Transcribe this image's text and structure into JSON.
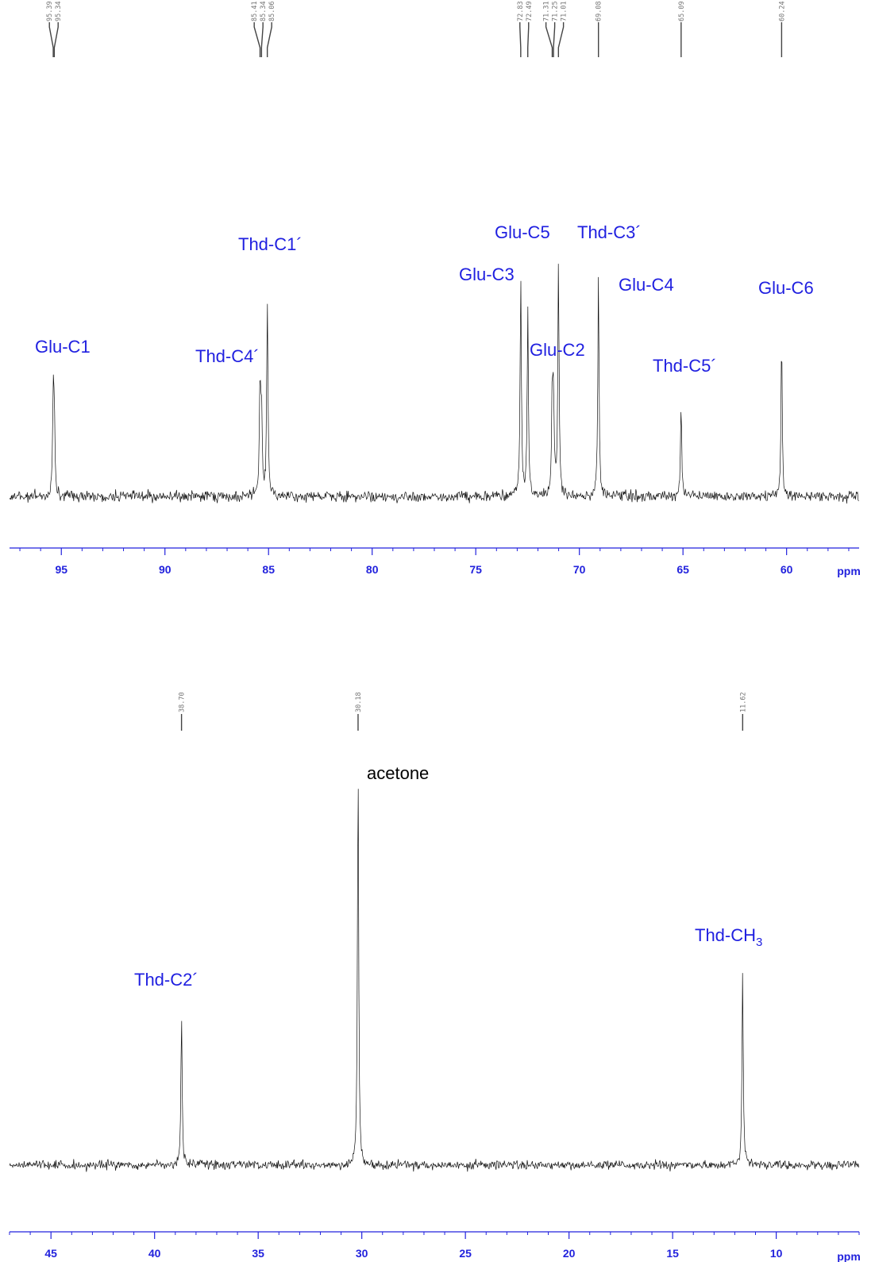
{
  "colors": {
    "axis": "#2222dd",
    "annotation": "#1f1fe0",
    "trace": "#111111",
    "peak_label": "#777777"
  },
  "chart_data": [
    {
      "type": "line",
      "title": "",
      "xlabel": "ppm",
      "ylabel": "",
      "xlim": [
        97.5,
        56.5
      ],
      "x_reversed": true,
      "grid": false,
      "ticks": [
        95,
        90,
        85,
        80,
        75,
        70,
        65,
        60
      ],
      "tick_labels": [
        "95",
        "90",
        "85",
        "80",
        "75",
        "70",
        "65",
        "60"
      ],
      "axis_unit_label": "ppm",
      "peak_list": [
        "95.39",
        "95.34",
        "85.41",
        "85.34",
        "85.06",
        "72.83",
        "72.49",
        "71.31",
        "71.25",
        "71.01",
        "69.08",
        "65.09",
        "60.24"
      ],
      "peaks": [
        {
          "ppm": 95.39,
          "height": 0.37
        },
        {
          "ppm": 95.34,
          "height": 0.3
        },
        {
          "ppm": 85.41,
          "height": 0.44
        },
        {
          "ppm": 85.34,
          "height": 0.35
        },
        {
          "ppm": 85.06,
          "height": 0.78
        },
        {
          "ppm": 72.83,
          "height": 0.88
        },
        {
          "ppm": 72.49,
          "height": 0.73
        },
        {
          "ppm": 71.31,
          "height": 0.4
        },
        {
          "ppm": 71.25,
          "height": 0.37
        },
        {
          "ppm": 71.01,
          "height": 0.94
        },
        {
          "ppm": 69.08,
          "height": 0.86
        },
        {
          "ppm": 65.09,
          "height": 0.36
        },
        {
          "ppm": 60.24,
          "height": 0.64
        }
      ],
      "annotations": [
        {
          "text": "Glu-C1"
        },
        {
          "text": "Thd-C4´"
        },
        {
          "text": "Thd-C1´"
        },
        {
          "text": "Glu-C3"
        },
        {
          "text": "Glu-C5"
        },
        {
          "text": "Glu-C2"
        },
        {
          "text": "Thd-C3´"
        },
        {
          "text": "Glu-C4"
        },
        {
          "text": "Thd-C5´"
        },
        {
          "text": "Glu-C6"
        }
      ]
    },
    {
      "type": "line",
      "title": "",
      "xlabel": "ppm",
      "ylabel": "",
      "xlim": [
        47.0,
        6.0
      ],
      "x_reversed": true,
      "grid": false,
      "ticks": [
        45,
        40,
        35,
        30,
        25,
        20,
        15,
        10
      ],
      "tick_labels": [
        "45",
        "40",
        "35",
        "30",
        "25",
        "20",
        "15",
        "10"
      ],
      "axis_unit_label": "ppm",
      "peak_list": [
        "38.70",
        "30.18",
        "11.62"
      ],
      "peaks": [
        {
          "ppm": 38.7,
          "height": 0.38
        },
        {
          "ppm": 30.18,
          "height": 1.0
        },
        {
          "ppm": 11.62,
          "height": 0.48
        }
      ],
      "annotations": [
        {
          "text": "Thd-C2´"
        },
        {
          "text": "acetone",
          "color": "#000000"
        },
        {
          "text": "Thd-CH",
          "subscript": "3"
        }
      ]
    }
  ]
}
